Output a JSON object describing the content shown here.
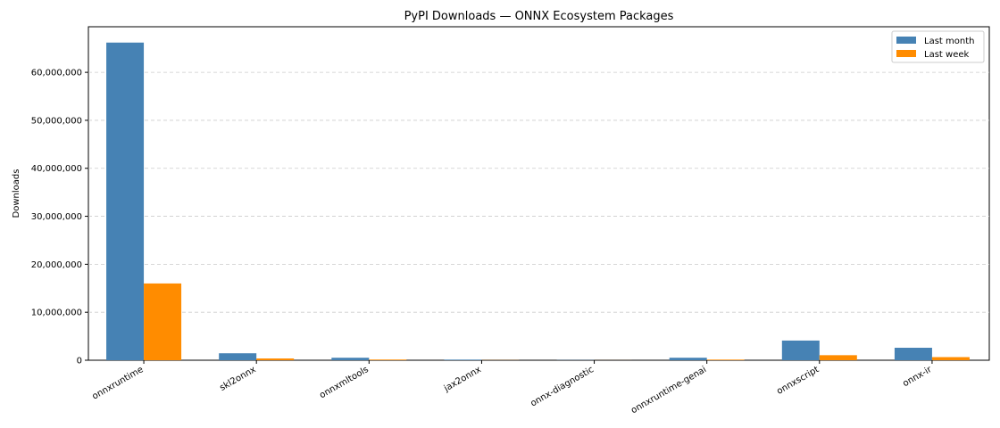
{
  "chart_data": {
    "type": "bar",
    "title": "PyPI Downloads — ONNX Ecosystem Packages",
    "xlabel": "",
    "ylabel": "Downloads",
    "categories": [
      "onnxruntime",
      "skl2onnx",
      "onnxmltools",
      "jax2onnx",
      "onnx-diagnostic",
      "onnxruntime-genai",
      "onnxscript",
      "onnx-ir"
    ],
    "series": [
      {
        "name": "Last month",
        "color": "#4682b4",
        "values": [
          66200000,
          1450000,
          520000,
          130000,
          40000,
          520000,
          4100000,
          2600000
        ]
      },
      {
        "name": "Last week",
        "color": "#ff8c00",
        "values": [
          16000000,
          370000,
          140000,
          30000,
          10000,
          130000,
          1050000,
          650000
        ]
      }
    ],
    "ylim": [
      0,
      69500000
    ],
    "yticks": [
      0,
      10000000,
      20000000,
      30000000,
      40000000,
      50000000,
      60000000
    ],
    "ytick_labels": [
      "0",
      "10,000,000",
      "20,000,000",
      "30,000,000",
      "40,000,000",
      "50,000,000",
      "60,000,000"
    ],
    "grid": "y-dashed",
    "legend_position": "top-right"
  }
}
